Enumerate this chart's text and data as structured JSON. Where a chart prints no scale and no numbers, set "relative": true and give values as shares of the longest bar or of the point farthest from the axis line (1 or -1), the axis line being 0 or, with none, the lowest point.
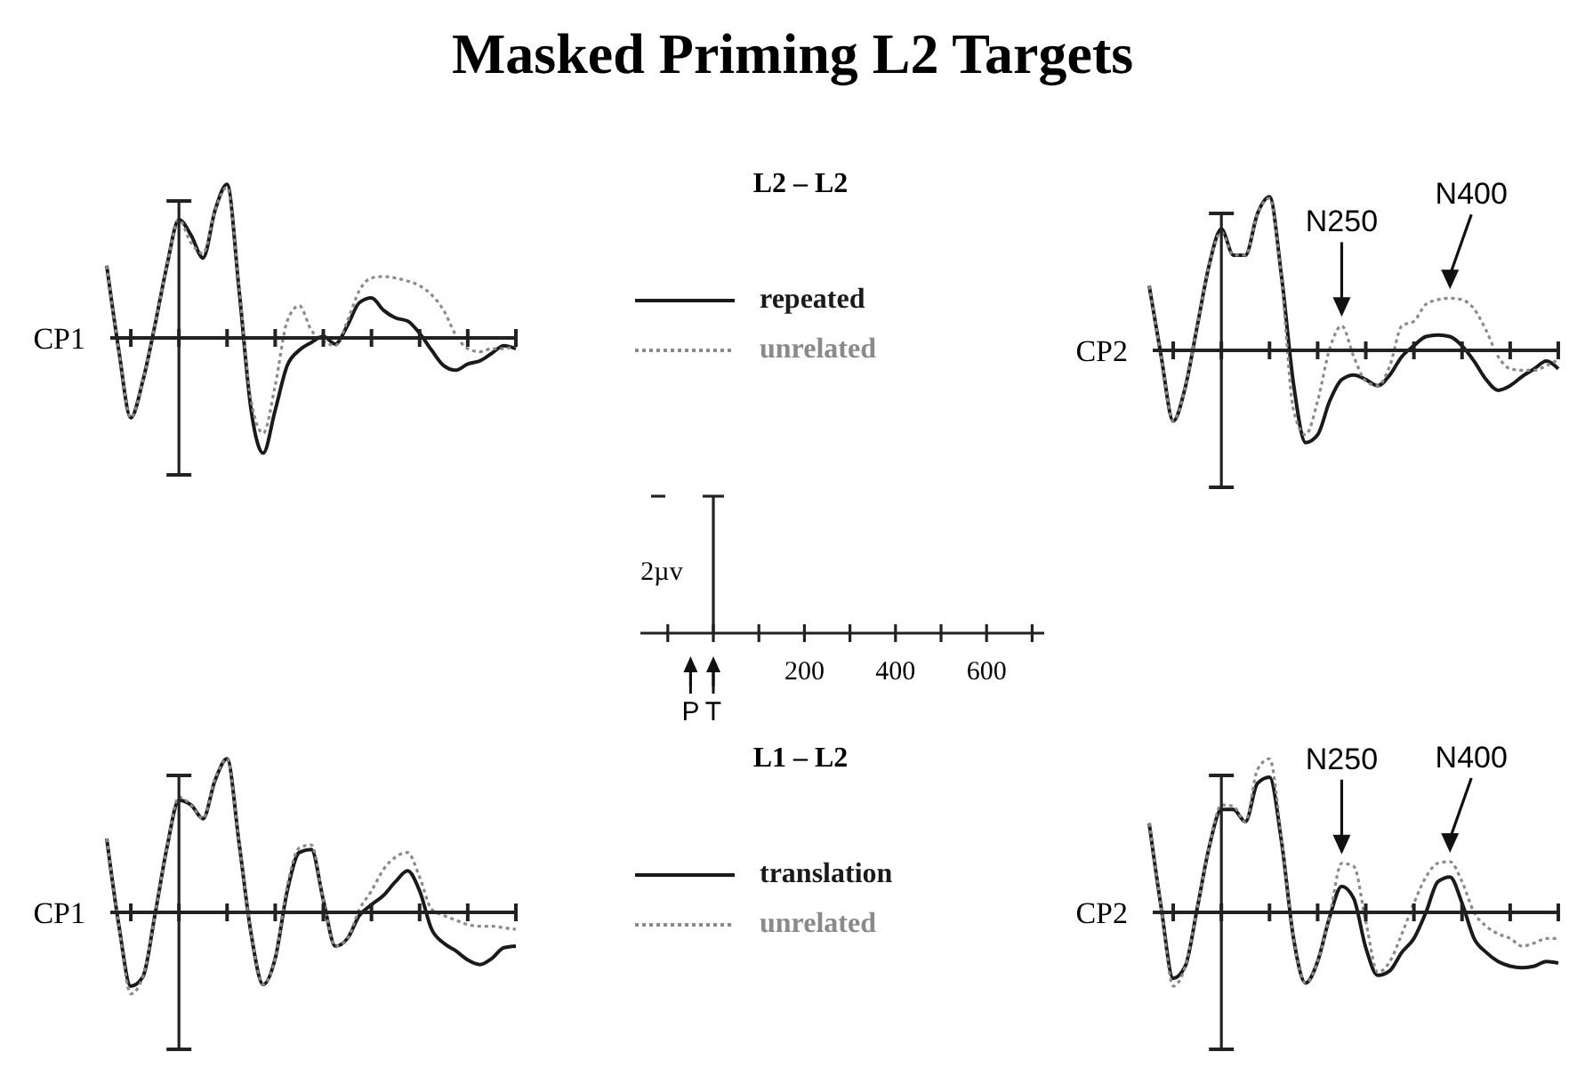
{
  "chart_data": [
    {
      "type": "other",
      "title": "Masked Priming L2 Targets",
      "annotations": [
        "2µv",
        "200",
        "400",
        "600",
        "P",
        "T"
      ]
    },
    {
      "type": "line",
      "ylabel": "CP1",
      "legend_title": "L2 – L2",
      "legend": "right",
      "relative": true,
      "marker": "none",
      "tick_labels": false,
      "categories": [
        null,
        null,
        null,
        null,
        null,
        null,
        null,
        null,
        null,
        null,
        null,
        null,
        null,
        null,
        null,
        null,
        null,
        null,
        null,
        null,
        null,
        null,
        null,
        null,
        null,
        null,
        null,
        null,
        null,
        null,
        null,
        null,
        null,
        null,
        null
      ],
      "series": [
        {
          "name": "repeated",
          "color": "#1a1a1a",
          "line_style": "solid",
          "values": [
            0.47,
            -0.08,
            -0.52,
            -0.28,
            0.08,
            0.47,
            0.77,
            0.67,
            0.52,
            0.83,
            1.0,
            0.31,
            -0.47,
            -0.75,
            -0.47,
            -0.18,
            -0.08,
            -0.03,
            0.01,
            -0.04,
            0.08,
            0.23,
            0.26,
            0.18,
            0.13,
            0.11,
            0.03,
            -0.08,
            -0.18,
            -0.21,
            -0.17,
            -0.15,
            -0.1,
            -0.05,
            -0.07
          ]
        },
        {
          "name": "unrelated",
          "color": "#8a8a8a",
          "line_style": "dotted",
          "values": [
            0.47,
            -0.08,
            -0.52,
            -0.28,
            0.08,
            0.47,
            0.77,
            0.62,
            0.55,
            0.83,
            0.98,
            0.33,
            -0.41,
            -0.62,
            -0.31,
            0.11,
            0.21,
            0.05,
            -0.02,
            -0.05,
            0.11,
            0.31,
            0.39,
            0.4,
            0.39,
            0.37,
            0.34,
            0.28,
            0.18,
            0.02,
            -0.07,
            -0.09,
            -0.07,
            -0.07,
            -0.05
          ]
        }
      ]
    },
    {
      "type": "line",
      "ylabel": "CP2",
      "relative": true,
      "marker": "none",
      "tick_labels": false,
      "annotations": [
        "N250",
        "N400"
      ],
      "categories": [
        null,
        null,
        null,
        null,
        null,
        null,
        null,
        null,
        null,
        null,
        null,
        null,
        null,
        null,
        null,
        null,
        null,
        null,
        null,
        null,
        null,
        null,
        null,
        null,
        null,
        null,
        null,
        null,
        null,
        null,
        null,
        null,
        null,
        null,
        null
      ],
      "series": [
        {
          "color": "#1a1a1a",
          "line_style": "solid",
          "values": [
            0.42,
            -0.04,
            -0.46,
            -0.24,
            0.16,
            0.56,
            0.79,
            0.62,
            0.62,
            0.89,
            1.0,
            0.48,
            -0.22,
            -0.6,
            -0.55,
            -0.33,
            -0.19,
            -0.16,
            -0.19,
            -0.23,
            -0.16,
            -0.04,
            0.03,
            0.09,
            0.1,
            0.09,
            0.03,
            -0.07,
            -0.19,
            -0.26,
            -0.23,
            -0.17,
            -0.12,
            -0.07,
            -0.12
          ]
        },
        {
          "color": "#8a8a8a",
          "line_style": "dotted",
          "values": [
            0.42,
            -0.04,
            -0.46,
            -0.24,
            0.16,
            0.56,
            0.77,
            0.62,
            0.62,
            0.89,
            0.99,
            0.46,
            -0.39,
            -0.55,
            -0.33,
            0.01,
            0.16,
            -0.04,
            -0.2,
            -0.23,
            -0.1,
            0.16,
            0.19,
            0.3,
            0.33,
            0.34,
            0.33,
            0.27,
            0.13,
            -0.04,
            -0.12,
            -0.13,
            -0.13,
            -0.1,
            -0.06
          ]
        }
      ]
    },
    {
      "type": "line",
      "ylabel": "CP1",
      "legend_title": "L1 – L2",
      "legend": "right",
      "relative": true,
      "marker": "none",
      "tick_labels": false,
      "categories": [
        null,
        null,
        null,
        null,
        null,
        null,
        null,
        null,
        null,
        null,
        null,
        null,
        null,
        null,
        null,
        null,
        null,
        null,
        null,
        null,
        null,
        null,
        null,
        null,
        null,
        null,
        null,
        null,
        null,
        null,
        null,
        null,
        null,
        null,
        null
      ],
      "series": [
        {
          "name": "translation",
          "color": "#1a1a1a",
          "line_style": "solid",
          "values": [
            0.48,
            -0.08,
            -0.48,
            -0.42,
            -0.02,
            0.42,
            0.73,
            0.7,
            0.61,
            0.86,
            1.0,
            0.45,
            -0.14,
            -0.47,
            -0.3,
            0.14,
            0.39,
            0.41,
            0.08,
            -0.22,
            -0.17,
            -0.02,
            0.05,
            0.11,
            0.2,
            0.27,
            0.14,
            -0.11,
            -0.2,
            -0.25,
            -0.31,
            -0.34,
            -0.3,
            -0.23,
            -0.22
          ]
        },
        {
          "name": "unrelated",
          "color": "#8a8a8a",
          "line_style": "dotted",
          "values": [
            0.48,
            -0.08,
            -0.53,
            -0.42,
            -0.02,
            0.42,
            0.75,
            0.7,
            0.61,
            0.87,
            1.0,
            0.45,
            -0.14,
            -0.47,
            -0.3,
            0.17,
            0.42,
            0.44,
            0.08,
            -0.22,
            -0.17,
            0.02,
            0.14,
            0.28,
            0.36,
            0.39,
            0.23,
            0.02,
            -0.02,
            -0.05,
            -0.08,
            -0.09,
            -0.09,
            -0.1,
            -0.11
          ]
        }
      ]
    },
    {
      "type": "line",
      "ylabel": "CP2",
      "relative": true,
      "marker": "none",
      "tick_labels": false,
      "annotations": [
        "N250",
        "N400"
      ],
      "categories": [
        null,
        null,
        null,
        null,
        null,
        null,
        null,
        null,
        null,
        null,
        null,
        null,
        null,
        null,
        null,
        null,
        null,
        null,
        null,
        null,
        null,
        null,
        null,
        null,
        null,
        null,
        null,
        null,
        null,
        null,
        null,
        null,
        null,
        null,
        null
      ],
      "series": [
        {
          "color": "#1a1a1a",
          "line_style": "solid",
          "values": [
            0.58,
            0.03,
            -0.43,
            -0.35,
            0.03,
            0.43,
            0.67,
            0.67,
            0.59,
            0.84,
            0.88,
            0.46,
            -0.17,
            -0.46,
            -0.32,
            -0.03,
            0.17,
            0.09,
            -0.23,
            -0.41,
            -0.38,
            -0.26,
            -0.17,
            0,
            0.2,
            0.23,
            0.06,
            -0.17,
            -0.26,
            -0.32,
            -0.35,
            -0.36,
            -0.35,
            -0.32,
            -0.33
          ]
        },
        {
          "color": "#8a8a8a",
          "line_style": "dotted",
          "values": [
            0.58,
            0.03,
            -0.48,
            -0.35,
            0.03,
            0.43,
            0.7,
            0.69,
            0.59,
            0.93,
            1.0,
            0.48,
            -0.17,
            -0.46,
            -0.32,
            -0.02,
            0.32,
            0.3,
            -0.06,
            -0.39,
            -0.32,
            -0.14,
            0.06,
            0.23,
            0.32,
            0.33,
            0.2,
            0,
            -0.09,
            -0.14,
            -0.17,
            -0.22,
            -0.2,
            -0.17,
            -0.17
          ]
        }
      ]
    }
  ]
}
